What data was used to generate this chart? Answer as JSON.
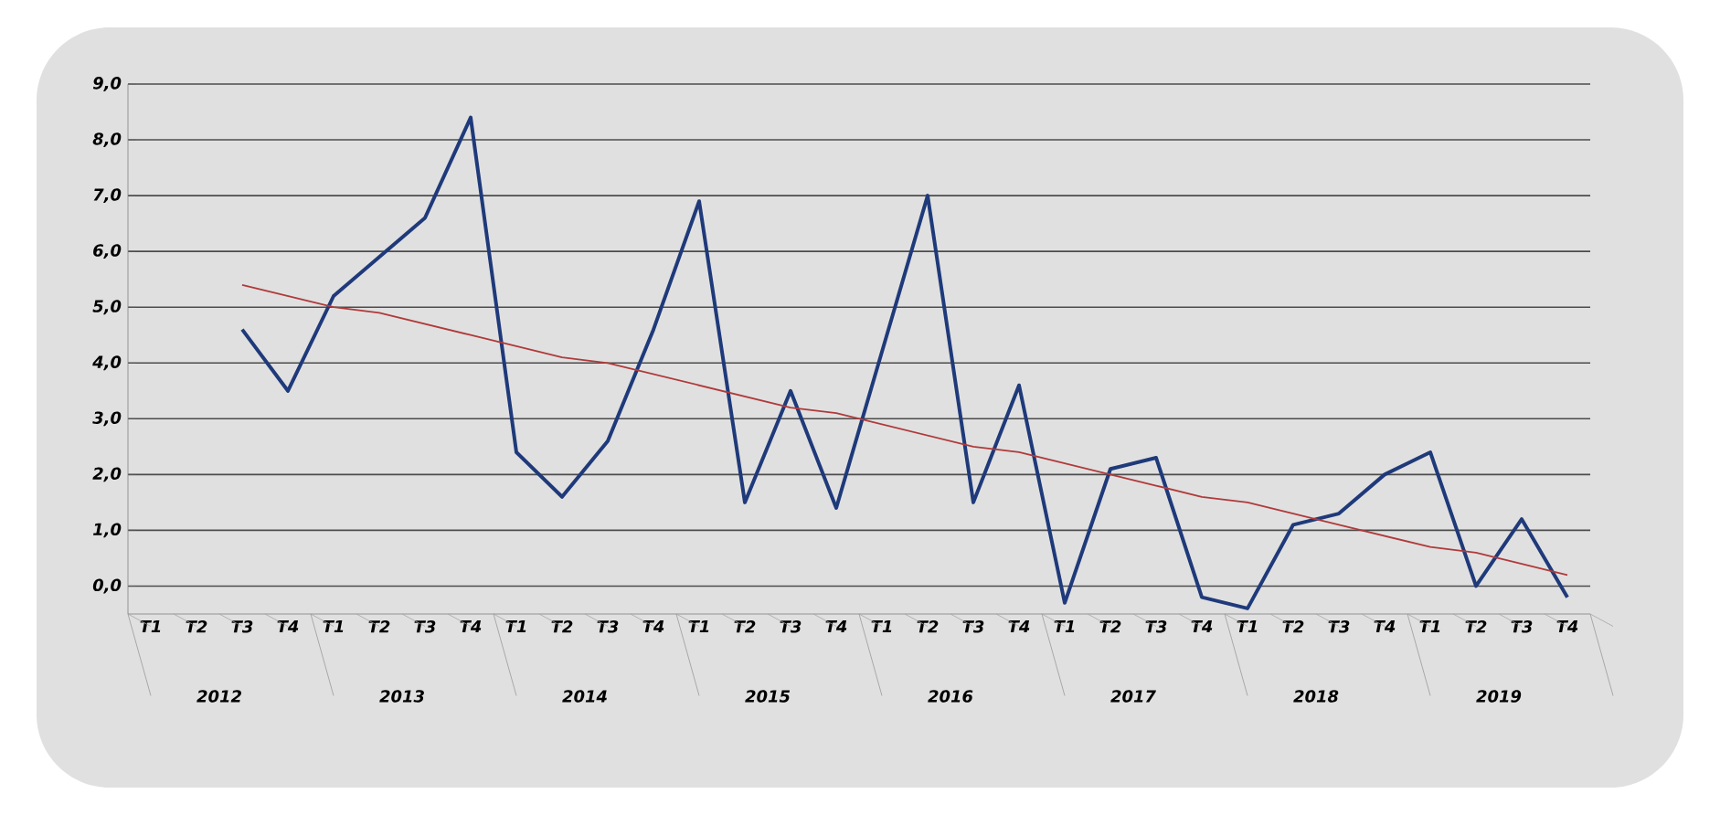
{
  "chart_data": {
    "type": "line",
    "categories": [
      "T1",
      "T2",
      "T3",
      "T4",
      "T1",
      "T2",
      "T3",
      "T4",
      "T1",
      "T2",
      "T3",
      "T4",
      "T1",
      "T2",
      "T3",
      "T4",
      "T1",
      "T2",
      "T3",
      "T4",
      "T1",
      "T2",
      "T3",
      "T4",
      "T1",
      "T2",
      "T3",
      "T4",
      "T1",
      "T2",
      "T3",
      "T4"
    ],
    "ylim": [
      -0.5,
      9
    ],
    "yticks": [
      {
        "value": 0,
        "label": "0,0"
      },
      {
        "value": 1,
        "label": "1,0"
      },
      {
        "value": 2,
        "label": "2,0"
      },
      {
        "value": 3,
        "label": "3,0"
      },
      {
        "value": 4,
        "label": "4,0"
      },
      {
        "value": 5,
        "label": "5,0"
      },
      {
        "value": 6,
        "label": "6,0"
      },
      {
        "value": 7,
        "label": "7,0"
      },
      {
        "value": 8,
        "label": "8,0"
      },
      {
        "value": 9,
        "label": "9,0"
      }
    ],
    "grid": "y",
    "marker": "none",
    "line_style": "solid",
    "annotations": [
      "2012",
      "2013",
      "2014",
      "2015",
      "2016",
      "2017",
      "2018",
      "2019"
    ],
    "series": [
      {
        "color": "#1f3a7a",
        "values": [
          null,
          null,
          4.6,
          3.5,
          5.2,
          5.9,
          6.6,
          8.4,
          2.4,
          1.6,
          2.6,
          4.6,
          6.9,
          1.5,
          3.5,
          1.4,
          4.2,
          7.0,
          1.5,
          3.6,
          -0.3,
          2.1,
          2.3,
          -0.2,
          -0.4,
          1.1,
          1.3,
          2.0,
          2.4,
          0.0,
          1.2,
          -0.2
        ]
      },
      {
        "color": "#b03a3a",
        "values": [
          null,
          null,
          5.4,
          5.2,
          5.0,
          4.9,
          4.7,
          4.5,
          4.3,
          4.1,
          4.0,
          3.8,
          3.6,
          3.4,
          3.2,
          3.1,
          2.9,
          2.7,
          2.5,
          2.4,
          2.2,
          2.0,
          1.8,
          1.6,
          1.5,
          1.3,
          1.1,
          0.9,
          0.7,
          0.6,
          0.4,
          0.2
        ]
      }
    ]
  }
}
